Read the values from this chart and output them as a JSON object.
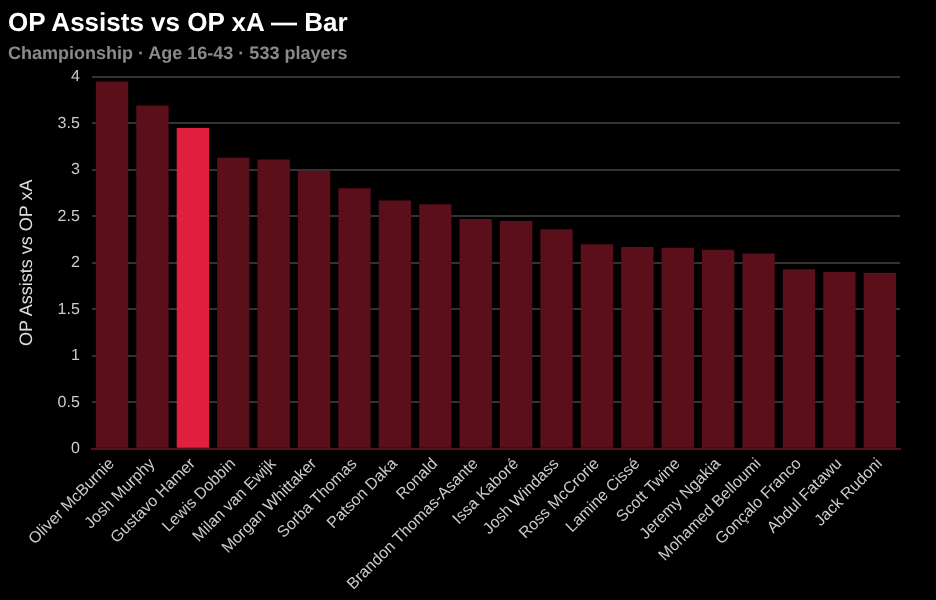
{
  "chart_data": {
    "type": "bar",
    "title": "OP Assists vs OP xA — Bar",
    "subtitle": "Championship · Age 16-43 · 533 players",
    "ylabel": "OP Assists vs OP xA",
    "categories": [
      "Oliver McBurnie",
      "Josh Murphy",
      "Gustavo Hamer",
      "Lewis Dobbin",
      "Milan van Ewijk",
      "Morgan Whittaker",
      "Sorba Thomas",
      "Patson Daka",
      "Ronald",
      "Brandon Thomas-Asante",
      "Issa Kaboré",
      "Josh Windass",
      "Ross McCrorie",
      "Lamine Cissé",
      "Scott Twine",
      "Jeremy Ngakia",
      "Mohamed Belloumi",
      "Gonçalo Franco",
      "Abdul Fatawu",
      "Jack Rudoni"
    ],
    "values": [
      3.95,
      3.69,
      3.45,
      3.13,
      3.11,
      2.99,
      2.8,
      2.67,
      2.63,
      2.47,
      2.45,
      2.36,
      2.2,
      2.17,
      2.16,
      2.14,
      2.1,
      1.93,
      1.9,
      1.89
    ],
    "colors": [
      "#5a0f1a",
      "#5a0f1a",
      "#e0203c",
      "#5a0f1a",
      "#5a0f1a",
      "#5a0f1a",
      "#5a0f1a",
      "#5a0f1a",
      "#5a0f1a",
      "#5a0f1a",
      "#5a0f1a",
      "#5a0f1a",
      "#5a0f1a",
      "#5a0f1a",
      "#5a0f1a",
      "#5a0f1a",
      "#5a0f1a",
      "#5a0f1a",
      "#5a0f1a",
      "#5a0f1a"
    ],
    "ylim": [
      0,
      4
    ],
    "yticks": [
      0,
      0.5,
      1,
      1.5,
      2,
      2.5,
      3,
      3.5,
      4
    ],
    "grid": "y",
    "legend": false
  }
}
